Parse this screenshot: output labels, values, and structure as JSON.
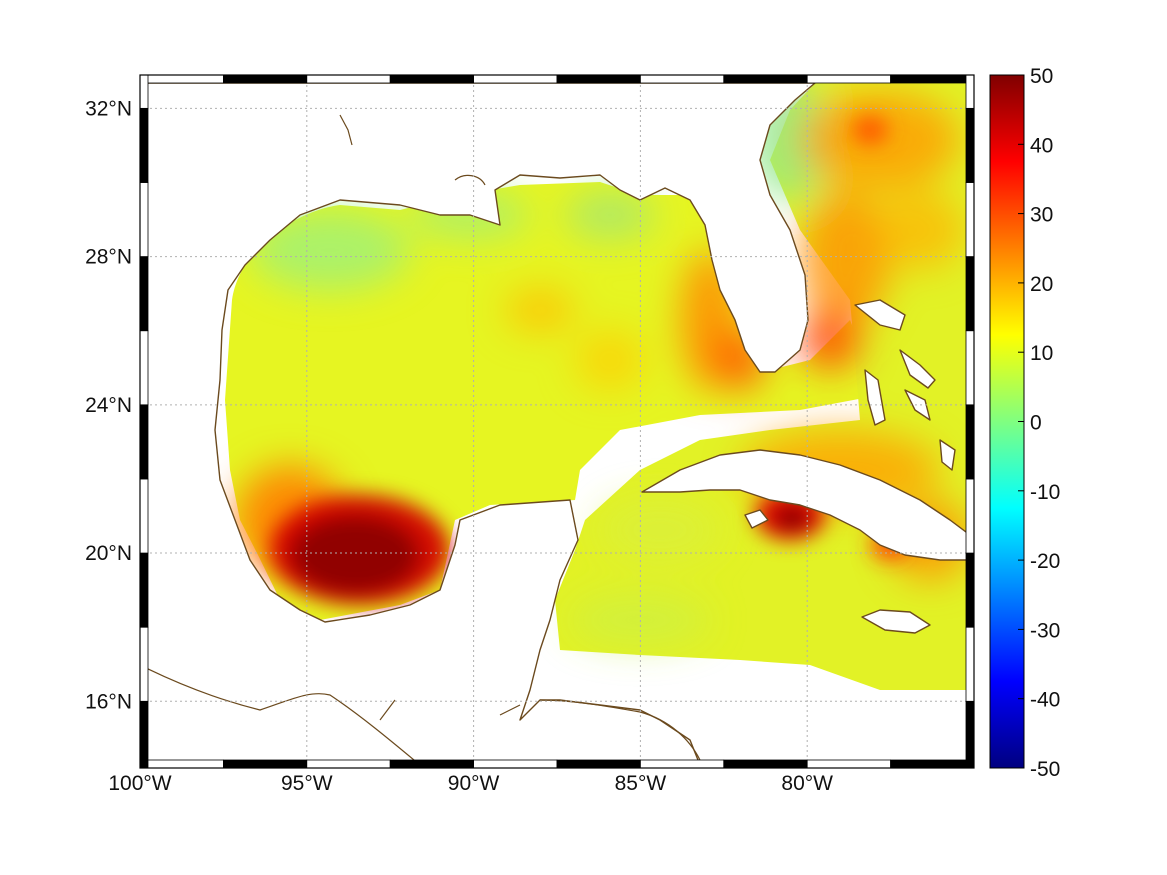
{
  "map": {
    "type": "heatmap",
    "region": "Gulf of Mexico",
    "x_axis": {
      "range": [
        -100,
        -75
      ],
      "ticks": [
        -100,
        -95,
        -90,
        -85,
        -80
      ],
      "tick_labels": [
        "100°W",
        "95°W",
        "90°W",
        "85°W",
        "80°W"
      ]
    },
    "y_axis": {
      "range": [
        14.2,
        32.9
      ],
      "ticks": [
        16,
        20,
        24,
        28,
        32
      ],
      "tick_labels": [
        "16°N",
        "20°N",
        "24°N",
        "28°N",
        "32°N"
      ]
    },
    "grid": true,
    "frame": "black-white-checkered",
    "coastline_color": "#6b4a1e",
    "land_color": "#ffffff",
    "colorbar": {
      "range": [
        -50,
        50
      ],
      "ticks": [
        50,
        40,
        30,
        20,
        10,
        0,
        -10,
        -20,
        -30,
        -40,
        -50
      ],
      "tick_labels": [
        "50",
        "40",
        "30",
        "20",
        "10",
        "0",
        "-10",
        "-20",
        "-30",
        "-40",
        "-50"
      ],
      "colormap": "jet",
      "placement": "right"
    },
    "field_summary": [
      {
        "area": "Gulf of Mexico interior",
        "approx_value": 10
      },
      {
        "area": "Northern Gulf shelf",
        "approx_value": 6
      },
      {
        "area": "Bay of Campeche",
        "approx_value": 45
      },
      {
        "area": "West Florida shelf",
        "approx_value": 25
      },
      {
        "area": "Central Cuba south coast",
        "approx_value": 45
      },
      {
        "area": "Atlantic east of Florida",
        "approx_value": 20
      },
      {
        "area": "Western Caribbean",
        "approx_value": 10
      }
    ]
  }
}
